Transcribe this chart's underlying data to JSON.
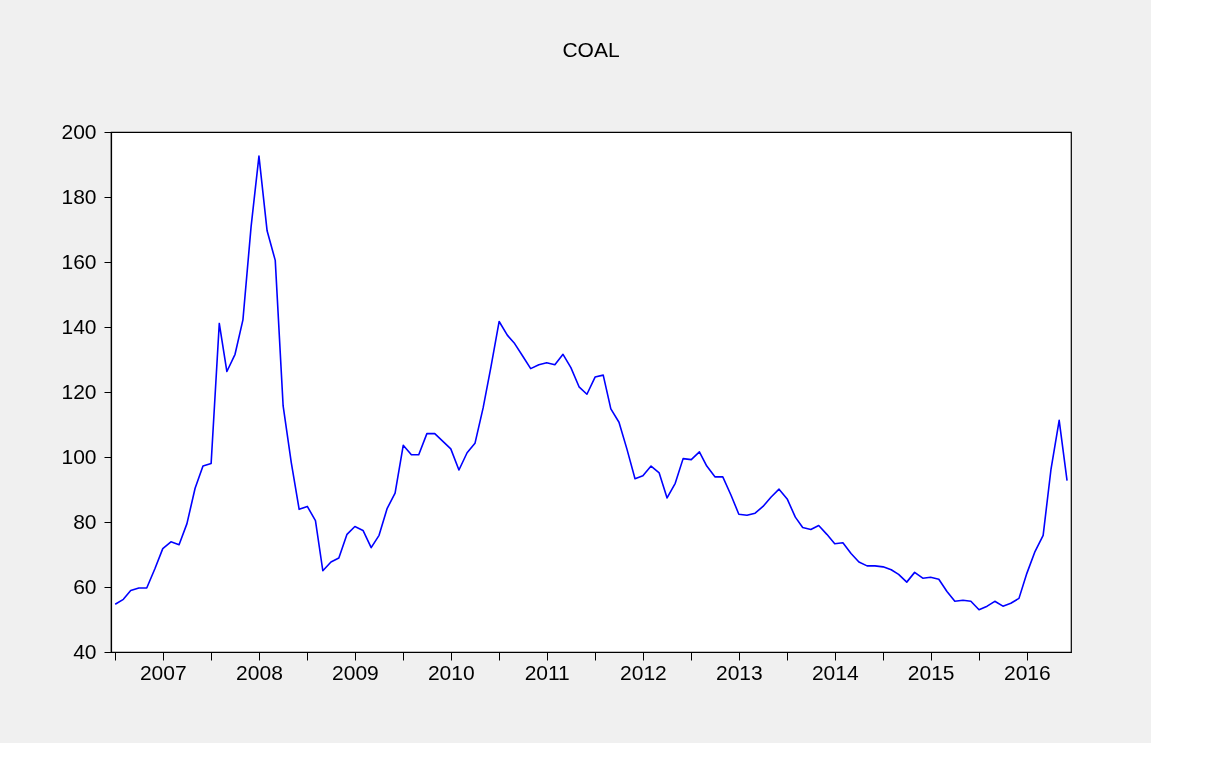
{
  "chart_data": {
    "type": "line",
    "title": "COAL",
    "x": [
      "2007-01",
      "2007-02",
      "2007-03",
      "2007-04",
      "2007-05",
      "2007-06",
      "2007-07",
      "2007-08",
      "2007-09",
      "2007-10",
      "2007-11",
      "2007-12",
      "2008-01",
      "2008-02",
      "2008-03",
      "2008-04",
      "2008-05",
      "2008-06",
      "2008-07",
      "2008-08",
      "2008-09",
      "2008-10",
      "2008-11",
      "2008-12",
      "2009-01",
      "2009-02",
      "2009-03",
      "2009-04",
      "2009-05",
      "2009-06",
      "2009-07",
      "2009-08",
      "2009-09",
      "2009-10",
      "2009-11",
      "2009-12",
      "2010-01",
      "2010-02",
      "2010-03",
      "2010-04",
      "2010-05",
      "2010-06",
      "2010-07",
      "2010-08",
      "2010-09",
      "2010-10",
      "2010-11",
      "2010-12",
      "2011-01",
      "2011-02",
      "2011-03",
      "2011-04",
      "2011-05",
      "2011-06",
      "2011-07",
      "2011-08",
      "2011-09",
      "2011-10",
      "2011-11",
      "2011-12",
      "2012-01",
      "2012-02",
      "2012-03",
      "2012-04",
      "2012-05",
      "2012-06",
      "2012-07",
      "2012-08",
      "2012-09",
      "2012-10",
      "2012-11",
      "2012-12",
      "2013-01",
      "2013-02",
      "2013-03",
      "2013-04",
      "2013-05",
      "2013-06",
      "2013-07",
      "2013-08",
      "2013-09",
      "2013-10",
      "2013-11",
      "2013-12",
      "2014-01",
      "2014-02",
      "2014-03",
      "2014-04",
      "2014-05",
      "2014-06",
      "2014-07",
      "2014-08",
      "2014-09",
      "2014-10",
      "2014-11",
      "2014-12",
      "2015-01",
      "2015-02",
      "2015-03",
      "2015-04",
      "2015-05",
      "2015-06",
      "2015-07",
      "2015-08",
      "2015-09",
      "2015-10",
      "2015-11",
      "2015-12",
      "2016-01",
      "2016-02",
      "2016-03",
      "2016-04",
      "2016-05",
      "2016-06",
      "2016-07",
      "2016-08",
      "2016-09",
      "2016-10",
      "2016-11",
      "2016-12"
    ],
    "series": [
      {
        "color": "#0000ff",
        "values": [
          54.7,
          56.2,
          58.9,
          59.7,
          59.7,
          65.6,
          71.8,
          73.9,
          73.0,
          79.5,
          90.4,
          97.2,
          98.0,
          141.1,
          126.3,
          131.6,
          142.2,
          170.8,
          192.6,
          169.6,
          160.5,
          115.7,
          98.3,
          83.9,
          84.8,
          80.4,
          65.0,
          67.7,
          68.9,
          76.2,
          78.6,
          77.4,
          72.1,
          75.9,
          84.2,
          88.9,
          103.6,
          100.7,
          100.7,
          107.2,
          107.2,
          104.8,
          102.5,
          96.0,
          101.3,
          104.2,
          115.1,
          127.8,
          141.7,
          137.5,
          134.9,
          131.0,
          127.2,
          128.4,
          129.0,
          128.4,
          131.6,
          127.5,
          121.6,
          119.3,
          124.6,
          125.2,
          114.8,
          110.7,
          102.5,
          93.3,
          94.2,
          97.2,
          95.1,
          87.4,
          91.9,
          99.5,
          99.2,
          101.6,
          97.2,
          93.9,
          93.9,
          88.3,
          82.4,
          82.1,
          82.7,
          84.8,
          87.7,
          90.1,
          87.1,
          81.5,
          78.3,
          77.7,
          78.9,
          76.2,
          73.3,
          73.6,
          70.3,
          67.7,
          66.5,
          66.5,
          66.2,
          65.3,
          63.9,
          61.5,
          64.5,
          62.7,
          63.0,
          62.4,
          58.6,
          55.6,
          55.9,
          55.6,
          53.0,
          54.1,
          55.6,
          54.1,
          55.0,
          56.5,
          64.2,
          70.9,
          75.9,
          96.3,
          111.3,
          92.7
        ]
      }
    ],
    "xlim": [
      "2006-12-16",
      "2016-12-16"
    ],
    "xticks": [
      {
        "value": "2007-01-01",
        "label": null
      },
      {
        "value": "2007-07-01",
        "label": "2007"
      },
      {
        "value": "2008-01-01",
        "label": null
      },
      {
        "value": "2008-07-01",
        "label": "2008"
      },
      {
        "value": "2009-01-01",
        "label": null
      },
      {
        "value": "2009-07-01",
        "label": "2009"
      },
      {
        "value": "2010-01-01",
        "label": null
      },
      {
        "value": "2010-07-01",
        "label": "2010"
      },
      {
        "value": "2011-01-01",
        "label": null
      },
      {
        "value": "2011-07-01",
        "label": "2011"
      },
      {
        "value": "2012-01-01",
        "label": null
      },
      {
        "value": "2012-07-01",
        "label": "2012"
      },
      {
        "value": "2013-01-01",
        "label": null
      },
      {
        "value": "2013-07-01",
        "label": "2013"
      },
      {
        "value": "2014-01-01",
        "label": null
      },
      {
        "value": "2014-07-01",
        "label": "2014"
      },
      {
        "value": "2015-01-01",
        "label": null
      },
      {
        "value": "2015-07-01",
        "label": "2015"
      },
      {
        "value": "2016-01-01",
        "label": null
      },
      {
        "value": "2016-07-01",
        "label": "2016"
      }
    ],
    "ylim": [
      40,
      200
    ],
    "yticks": [
      40,
      60,
      80,
      100,
      120,
      140,
      160,
      180,
      200
    ],
    "grid": false,
    "line_style": "solid"
  }
}
